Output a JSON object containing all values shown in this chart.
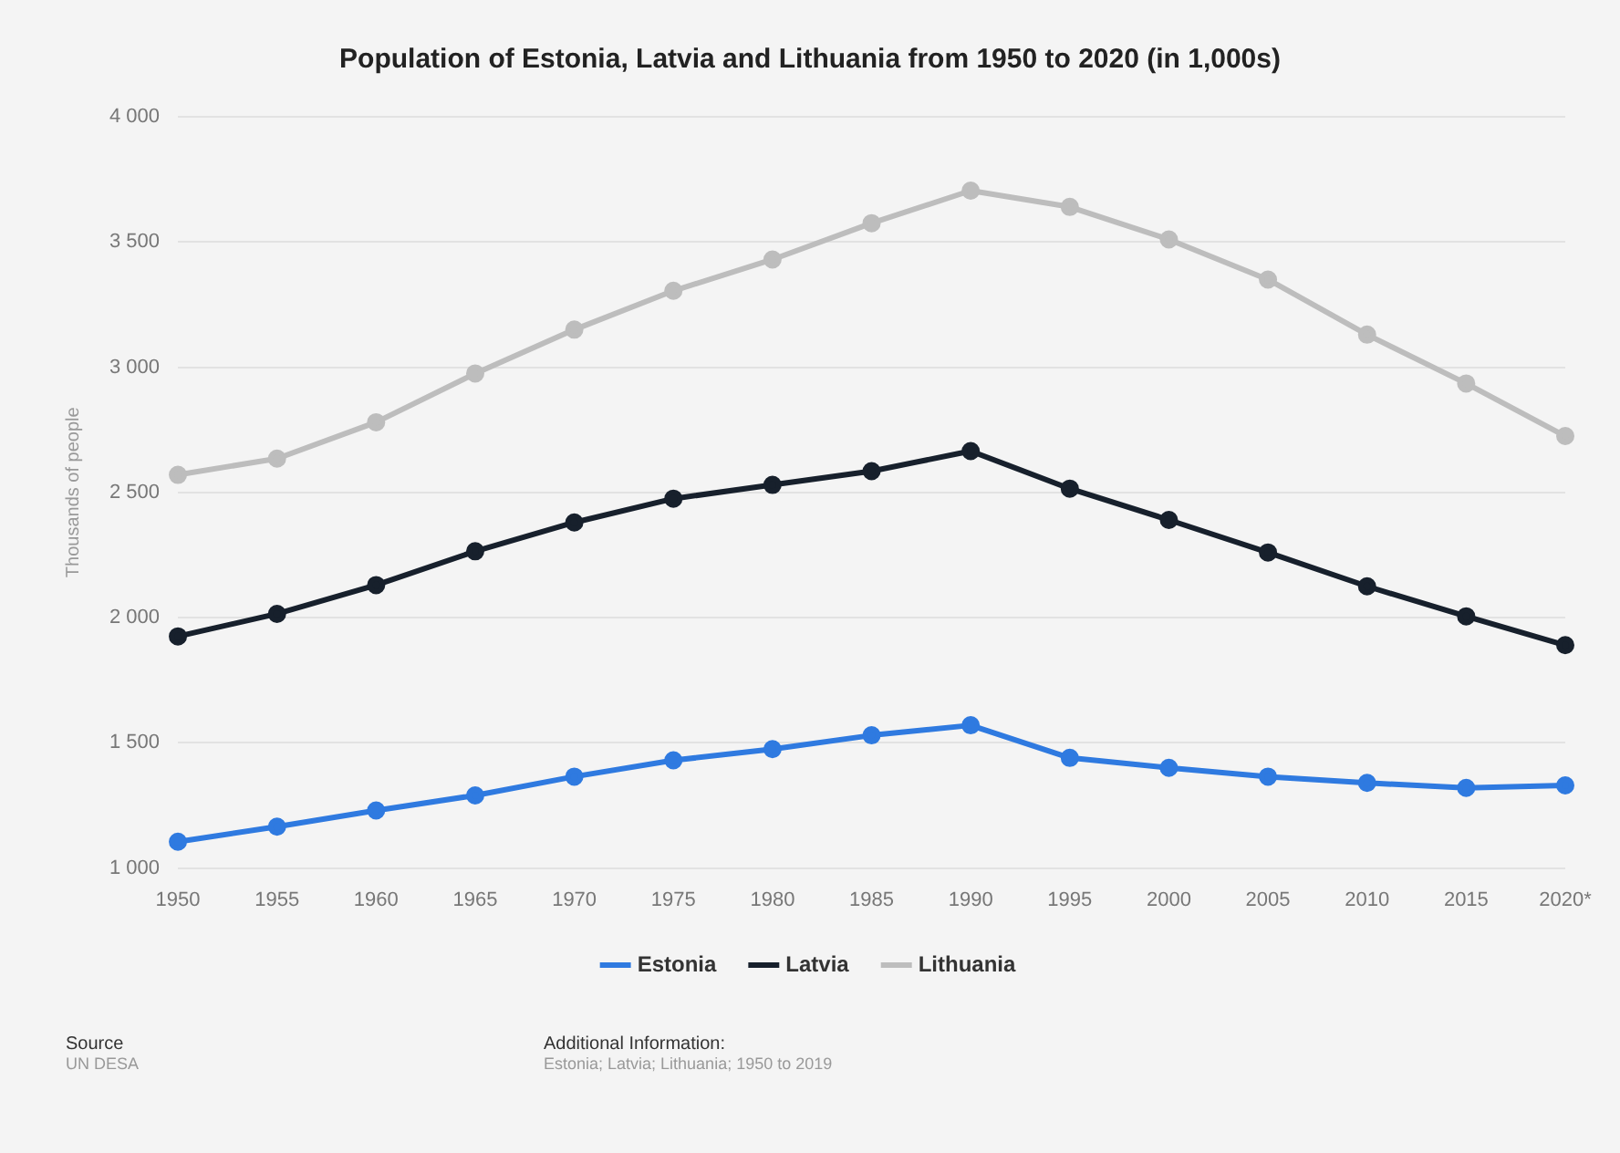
{
  "chart_data": {
    "type": "line",
    "title": "Population of Estonia, Latvia and Lithuania from 1950 to 2020 (in 1,000s)",
    "ylabel": "Thousands of people",
    "categories": [
      "1950",
      "1955",
      "1960",
      "1965",
      "1970",
      "1975",
      "1980",
      "1985",
      "1990",
      "1995",
      "2000",
      "2005",
      "2010",
      "2015",
      "2020*"
    ],
    "series": [
      {
        "name": "Estonia",
        "color": "#2f7ae0",
        "values": [
          1105,
          1165,
          1230,
          1290,
          1365,
          1430,
          1475,
          1530,
          1570,
          1440,
          1400,
          1365,
          1340,
          1320,
          1330
        ]
      },
      {
        "name": "Latvia",
        "color": "#17202c",
        "values": [
          1925,
          2015,
          2130,
          2265,
          2380,
          2475,
          2530,
          2585,
          2665,
          2515,
          2390,
          2260,
          2125,
          2005,
          1890
        ]
      },
      {
        "name": "Lithuania",
        "color": "#bdbdbd",
        "values": [
          2570,
          2635,
          2780,
          2975,
          3150,
          3305,
          3430,
          3575,
          3705,
          3640,
          3510,
          3350,
          3130,
          2935,
          2725
        ]
      }
    ],
    "ylim": [
      1000,
      4000
    ],
    "yticks": [
      {
        "value": 1000,
        "label": "1 000"
      },
      {
        "value": 1500,
        "label": "1 500"
      },
      {
        "value": 2000,
        "label": "2 000"
      },
      {
        "value": 2500,
        "label": "2 500"
      },
      {
        "value": 3000,
        "label": "3 000"
      },
      {
        "value": 3500,
        "label": "3 500"
      },
      {
        "value": 4000,
        "label": "4 000"
      }
    ],
    "grid": "y",
    "legend": "bottom",
    "marker": "circle",
    "line_style": "solid",
    "annotations": [
      "Source",
      "UN DESA",
      "Additional Information:",
      "Estonia; Latvia; Lithuania; 1950 to 2019"
    ]
  }
}
